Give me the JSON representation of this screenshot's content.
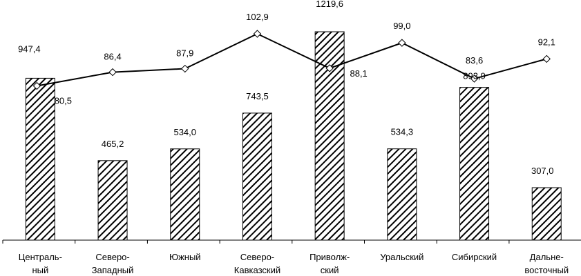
{
  "chart_data": {
    "type": "bar",
    "categories": [
      [
        "Централь-",
        "ный"
      ],
      [
        "Северо-",
        "Западный"
      ],
      [
        "Южный"
      ],
      [
        "Северо-",
        "Кавказский"
      ],
      [
        "Приволж-",
        "ский"
      ],
      [
        "Уральский"
      ],
      [
        "Сибирский"
      ],
      [
        "Дальне-",
        "восточный"
      ]
    ],
    "series": [
      {
        "type": "bar",
        "values": [
          947.4,
          465.2,
          534.0,
          743.5,
          1219.6,
          534.3,
          893.9,
          307.0
        ],
        "labels": [
          "947,4",
          "465,2",
          "534,0",
          "743,5",
          "1219,6",
          "534,3",
          "893,9",
          "307,0"
        ],
        "pattern": "diagonal-hatch"
      },
      {
        "type": "line",
        "values": [
          80.5,
          86.4,
          87.9,
          102.9,
          88.1,
          99.0,
          83.6,
          92.1
        ],
        "labels": [
          "80,5",
          "86,4",
          "87,9",
          "102,9",
          "88,1",
          "99,0",
          "83,6",
          "92,1"
        ],
        "marker": "diamond"
      }
    ],
    "legend": "none",
    "grid": false,
    "colors": {
      "bar_fill": "#ffffff",
      "bar_hatch": "#000000",
      "line": "#000000"
    }
  }
}
